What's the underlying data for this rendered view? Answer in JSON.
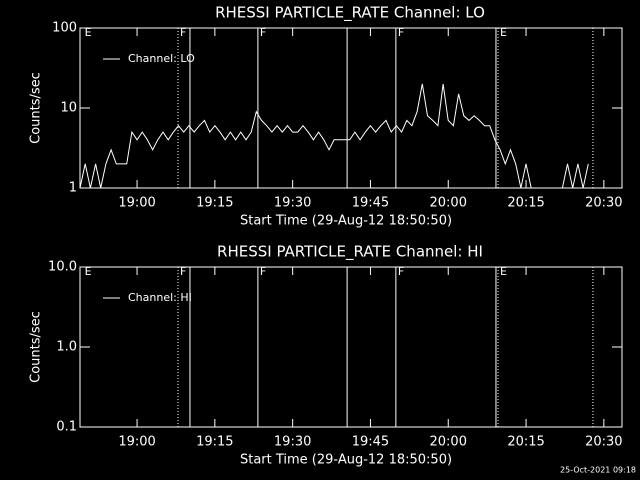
{
  "chart_data": [
    {
      "type": "line",
      "title": "RHESSI PARTICLE_RATE Channel: LO",
      "xlabel": "Start Time (29-Aug-12 18:50:50)",
      "ylabel": "Counts/sec",
      "xlim": [
        1129,
        1233.5
      ],
      "xticks": [
        {
          "value": 1140,
          "label": "19:00"
        },
        {
          "value": 1155,
          "label": "19:15"
        },
        {
          "value": 1170,
          "label": "19:30"
        },
        {
          "value": 1185,
          "label": "19:45"
        },
        {
          "value": 1200,
          "label": "20:00"
        },
        {
          "value": 1215,
          "label": "20:15"
        },
        {
          "value": 1230,
          "label": "20:30"
        }
      ],
      "ylim": [
        1,
        100
      ],
      "yticks": [
        1,
        10,
        100
      ],
      "ylog": true,
      "legend": "upper left",
      "x": [
        1129,
        1130,
        1131,
        1132,
        1133,
        1134,
        1135,
        1136,
        1137,
        1138,
        1139,
        1140,
        1141,
        1142,
        1143,
        1144,
        1145,
        1146,
        1147,
        1148,
        1149,
        1150,
        1151,
        1152,
        1153,
        1154,
        1155,
        1156,
        1157,
        1158,
        1159,
        1160,
        1161,
        1162,
        1163,
        1164,
        1165,
        1166,
        1167,
        1168,
        1169,
        1170,
        1171,
        1172,
        1173,
        1174,
        1175,
        1176,
        1177,
        1178,
        1179,
        1180,
        1181,
        1182,
        1183,
        1184,
        1185,
        1186,
        1187,
        1188,
        1189,
        1190,
        1191,
        1192,
        1193,
        1194,
        1195,
        1196,
        1197,
        1198,
        1199,
        1200,
        1201,
        1202,
        1203,
        1204,
        1205,
        1206,
        1207,
        1208,
        1209,
        1210,
        1211,
        1212,
        1213,
        1214,
        1215,
        1216,
        1217,
        1218,
        1219,
        1220,
        1221,
        1222,
        1223,
        1224,
        1225,
        1226,
        1227
      ],
      "series": [
        {
          "name": "Channel: LO",
          "color": "#ffffff",
          "values": [
            1,
            2,
            1,
            2,
            1,
            2,
            3,
            2,
            2,
            2,
            5,
            4,
            5,
            4,
            3,
            4,
            5,
            4,
            5,
            6,
            5,
            6,
            5,
            6,
            7,
            5,
            6,
            5,
            4,
            5,
            4,
            5,
            4,
            5,
            9,
            7,
            6,
            5,
            6,
            5,
            6,
            5,
            5,
            6,
            5,
            4,
            5,
            4,
            3,
            4,
            4,
            4,
            4,
            5,
            4,
            5,
            6,
            5,
            6,
            7,
            5,
            6,
            5,
            7,
            6,
            9,
            20,
            8,
            7,
            6,
            20,
            7,
            6,
            15,
            8,
            7,
            8,
            7,
            6,
            6,
            4,
            3,
            2,
            3,
            2,
            1,
            2,
            1,
            1,
            1,
            1,
            1,
            1,
            1,
            2,
            1,
            2,
            1,
            2
          ]
        }
      ],
      "lines": [
        {
          "x": 1147.9,
          "style": "dotted"
        },
        {
          "x": 1150.2,
          "style": "solid"
        },
        {
          "x": 1163.3,
          "style": "solid"
        },
        {
          "x": 1180.5,
          "style": "solid"
        },
        {
          "x": 1189.9,
          "style": "solid"
        },
        {
          "x": 1209.2,
          "style": "solid"
        },
        {
          "x": 1209.6,
          "style": "dotted"
        },
        {
          "x": 1227.9,
          "style": "dotted"
        }
      ],
      "flags": [
        {
          "x": 1129.5,
          "label": "E"
        },
        {
          "x": 1147.9,
          "label": "F"
        },
        {
          "x": 1163.3,
          "label": "F"
        },
        {
          "x": 1189.9,
          "label": "F"
        },
        {
          "x": 1209.6,
          "label": "E"
        }
      ]
    },
    {
      "type": "line",
      "title": "RHESSI PARTICLE_RATE Channel: HI",
      "xlabel": "Start Time (29-Aug-12 18:50:50)",
      "ylabel": "Counts/sec",
      "xlim": [
        1129,
        1233.5
      ],
      "xticks": [
        {
          "value": 1140,
          "label": "19:00"
        },
        {
          "value": 1155,
          "label": "19:15"
        },
        {
          "value": 1170,
          "label": "19:30"
        },
        {
          "value": 1185,
          "label": "19:45"
        },
        {
          "value": 1200,
          "label": "20:00"
        },
        {
          "value": 1215,
          "label": "20:15"
        },
        {
          "value": 1230,
          "label": "20:30"
        }
      ],
      "ylim": [
        0.1,
        10
      ],
      "yticks": [
        0.1,
        {
          "value": 1,
          "label": "1.0"
        },
        {
          "value": 10,
          "label": "10.0"
        }
      ],
      "ylog": true,
      "legend": "upper left",
      "x": [],
      "series": [
        {
          "name": "Channel: HI",
          "color": "#ffffff",
          "values": []
        }
      ],
      "lines": [
        {
          "x": 1147.9,
          "style": "dotted"
        },
        {
          "x": 1150.2,
          "style": "solid"
        },
        {
          "x": 1163.3,
          "style": "solid"
        },
        {
          "x": 1180.5,
          "style": "solid"
        },
        {
          "x": 1189.9,
          "style": "solid"
        },
        {
          "x": 1209.2,
          "style": "solid"
        },
        {
          "x": 1209.6,
          "style": "dotted"
        },
        {
          "x": 1227.9,
          "style": "dotted"
        }
      ],
      "flags": [
        {
          "x": 1129.5,
          "label": "E"
        },
        {
          "x": 1147.9,
          "label": "F"
        },
        {
          "x": 1163.3,
          "label": "F"
        },
        {
          "x": 1189.9,
          "label": "F"
        },
        {
          "x": 1209.6,
          "label": "E"
        }
      ]
    }
  ],
  "footer": "25-Oct-2021 09:18"
}
